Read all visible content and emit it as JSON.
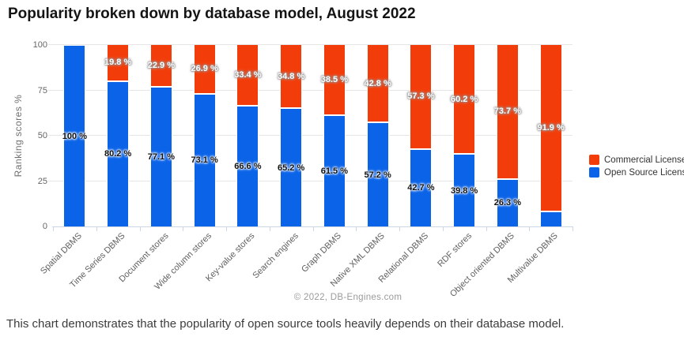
{
  "title": "Popularity broken down by database model, August 2022",
  "caption": "This chart demonstrates that the popularity of open source tools heavily depends on their database model.",
  "attribution": "© 2022, DB-Engines.com",
  "legend": [
    {
      "label": "Commercial License",
      "color": "#f23c0a"
    },
    {
      "label": "Open Source License",
      "color": "#0b63e8"
    }
  ],
  "chart_data": {
    "type": "bar",
    "stacked": true,
    "title": "Popularity broken down by database model, August 2022",
    "xlabel": "",
    "ylabel": "Ranking scores %",
    "ylim": [
      0,
      100
    ],
    "yticks": [
      0,
      25,
      50,
      75,
      100
    ],
    "grid": true,
    "legend_position": "right",
    "attribution": "© 2022, DB-Engines.com",
    "categories": [
      "Spatial DBMS",
      "Time Series DBMS",
      "Document stores",
      "Wide column stores",
      "Key-value stores",
      "Search engines",
      "Graph DBMS",
      "Native XML DBMS",
      "Relational DBMS",
      "RDF stores",
      "Object oriented DBMS",
      "Multivalue DBMS"
    ],
    "series": [
      {
        "name": "Commercial License",
        "color": "#f23c0a",
        "values": [
          0,
          19.8,
          22.9,
          26.9,
          33.4,
          34.8,
          38.5,
          42.8,
          57.3,
          60.2,
          73.7,
          91.9
        ],
        "labels": [
          null,
          "19.8 %",
          "22.9 %",
          "26.9 %",
          "33.4 %",
          "34.8 %",
          "38.5 %",
          "42.8 %",
          "57.3 %",
          "60.2 %",
          "73.7 %",
          "91.9 %"
        ]
      },
      {
        "name": "Open Source License",
        "color": "#0b63e8",
        "values": [
          100,
          80.2,
          77.1,
          73.1,
          66.6,
          65.2,
          61.5,
          57.2,
          42.7,
          39.8,
          26.3,
          8.1
        ],
        "labels": [
          "100 %",
          "80.2 %",
          "77.1 %",
          "73.1 %",
          "66.6 %",
          "65.2 %",
          "61.5 %",
          "57.2 %",
          "42.7 %",
          "39.8 %",
          "26.3 %",
          null
        ]
      }
    ]
  }
}
